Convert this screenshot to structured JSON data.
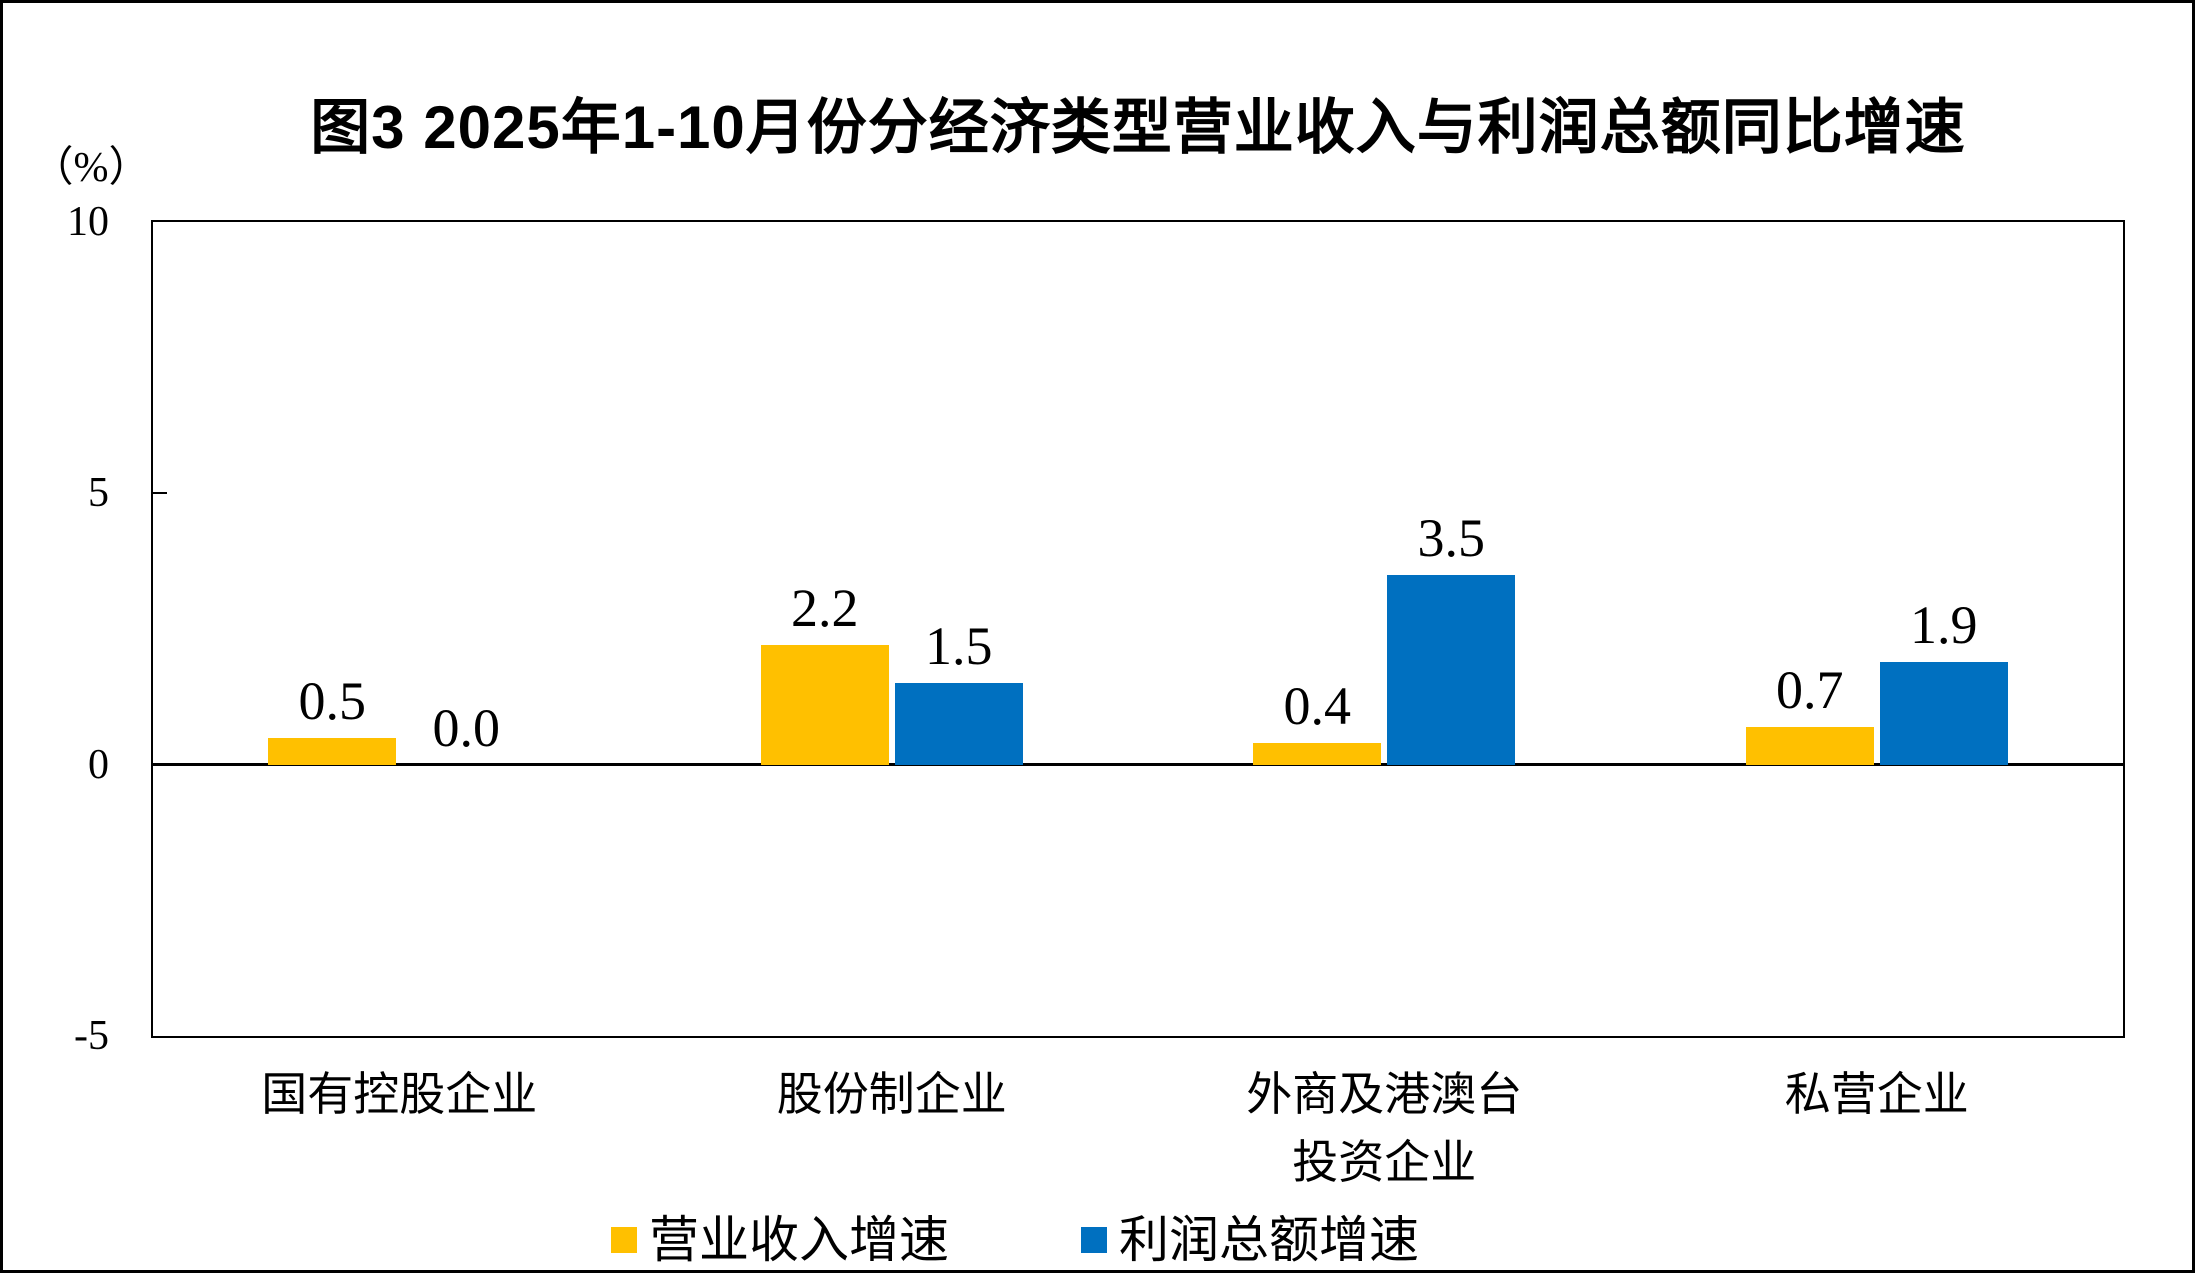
{
  "figure": {
    "title": "图3 2025年1-10月份分经济类型营业收入与利润总额同比增速",
    "y_unit_label": "（%）"
  },
  "y_axis": {
    "ticks": [
      "10",
      "5",
      "0",
      "-5"
    ]
  },
  "legend": {
    "items": [
      {
        "label": "营业收入增速",
        "color": "#FFC000"
      },
      {
        "label": "利润总额增速",
        "color": "#0070C0"
      }
    ]
  },
  "chart_data": {
    "type": "bar",
    "title": "图3 2025年1-10月份分经济类型营业收入与利润总额同比增速",
    "categories": [
      "国有控股企业",
      "股份制企业",
      "外商及港澳台投资企业",
      "私营企业"
    ],
    "category_display_lines": [
      [
        "国有控股企业"
      ],
      [
        "股份制企业"
      ],
      [
        "外商及港澳台",
        "投资企业"
      ],
      [
        "私营企业"
      ]
    ],
    "series": [
      {
        "name": "营业收入增速",
        "color": "#FFC000",
        "values": [
          0.5,
          2.2,
          0.4,
          0.7
        ]
      },
      {
        "name": "利润总额增速",
        "color": "#0070C0",
        "values": [
          0.0,
          1.5,
          3.5,
          1.9
        ]
      }
    ],
    "value_labels": [
      [
        "0.5",
        "2.2",
        "0.4",
        "0.7"
      ],
      [
        "0.0",
        "1.5",
        "3.5",
        "1.9"
      ]
    ],
    "xlabel": "",
    "ylabel": "（%）",
    "ylim": [
      -5,
      10
    ],
    "yticks": [
      10,
      5,
      0,
      -5
    ],
    "grid": false,
    "legend_position": "bottom"
  }
}
